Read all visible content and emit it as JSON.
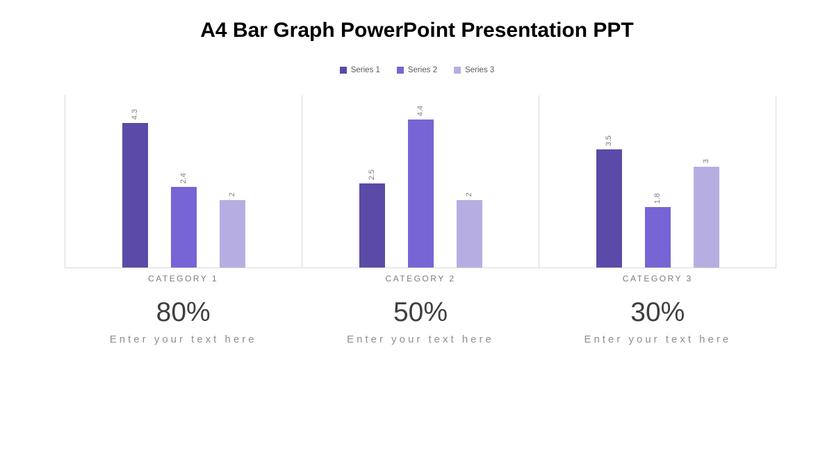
{
  "title": "A4 Bar Graph PowerPoint Presentation PPT",
  "legend": [
    {
      "label": "Series 1",
      "color": "#5b4aa8"
    },
    {
      "label": "Series 2",
      "color": "#7765d6"
    },
    {
      "label": "Series 3",
      "color": "#b6aee2"
    }
  ],
  "chart_data": {
    "type": "bar",
    "title": "A4 Bar Graph PowerPoint Presentation PPT",
    "categories": [
      "CATEGORY 1",
      "CATEGORY 2",
      "CATEGORY 3"
    ],
    "series": [
      {
        "name": "Series 1",
        "color": "#5b4aa8",
        "values": [
          4.3,
          2.5,
          3.5
        ]
      },
      {
        "name": "Series 2",
        "color": "#7765d6",
        "values": [
          2.4,
          4.4,
          1.8
        ]
      },
      {
        "name": "Series 3",
        "color": "#b6aee2",
        "values": [
          2,
          2,
          3
        ]
      }
    ],
    "data_labels": true,
    "xlabel": "",
    "ylabel": "",
    "ylim": [
      0,
      5.12
    ],
    "grid": false,
    "legend_position": "top",
    "axis_line_color": "#d9d9d9"
  },
  "stats": [
    {
      "percent": "80%",
      "caption": "Enter your text here"
    },
    {
      "percent": "50%",
      "caption": "Enter your text here"
    },
    {
      "percent": "30%",
      "caption": "Enter your text here"
    }
  ]
}
